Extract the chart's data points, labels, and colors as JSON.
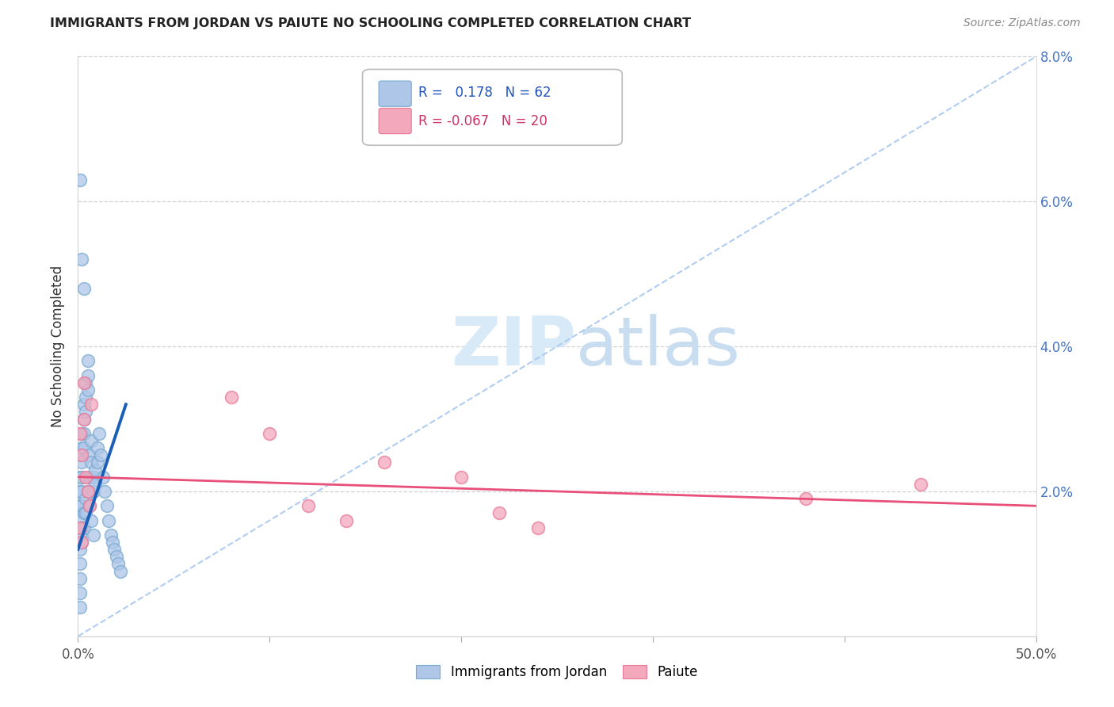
{
  "title": "IMMIGRANTS FROM JORDAN VS PAIUTE NO SCHOOLING COMPLETED CORRELATION CHART",
  "source": "Source: ZipAtlas.com",
  "ylabel": "No Schooling Completed",
  "xlim": [
    0.0,
    0.5
  ],
  "ylim": [
    0.0,
    0.08
  ],
  "xtick_positions": [
    0.0,
    0.1,
    0.2,
    0.3,
    0.4,
    0.5
  ],
  "xtick_labels_show": [
    "0.0%",
    "",
    "",
    "",
    "",
    "50.0%"
  ],
  "ytick_positions": [
    0.0,
    0.02,
    0.04,
    0.06,
    0.08
  ],
  "ytick_labels_right": [
    "",
    "2.0%",
    "4.0%",
    "6.0%",
    "8.0%"
  ],
  "jordan_R": 0.178,
  "jordan_N": 62,
  "paiute_R": -0.067,
  "paiute_N": 20,
  "jordan_color": "#aec6e8",
  "paiute_color": "#f4a8bc",
  "jordan_edge_color": "#7aaad0",
  "paiute_edge_color": "#e87898",
  "jordan_line_color": "#1a5eb8",
  "paiute_line_color": "#e8507a",
  "diag_line_color": "#a8c8f0",
  "watermark_color": "#d8eaf8",
  "legend_box_color": "#cccccc",
  "jordan_x": [
    0.001,
    0.001,
    0.001,
    0.001,
    0.001,
    0.001,
    0.001,
    0.001,
    0.002,
    0.002,
    0.002,
    0.002,
    0.002,
    0.002,
    0.003,
    0.003,
    0.003,
    0.003,
    0.004,
    0.004,
    0.004,
    0.005,
    0.005,
    0.005,
    0.006,
    0.006,
    0.007,
    0.007,
    0.008,
    0.008,
    0.009,
    0.009,
    0.01,
    0.01,
    0.011,
    0.012,
    0.013,
    0.014,
    0.015,
    0.016,
    0.017,
    0.018,
    0.019,
    0.02,
    0.021,
    0.022,
    0.001,
    0.001,
    0.001,
    0.002,
    0.002,
    0.003,
    0.003,
    0.004,
    0.004,
    0.005,
    0.006,
    0.007,
    0.008,
    0.001,
    0.002,
    0.003
  ],
  "jordan_y": [
    0.025,
    0.022,
    0.02,
    0.018,
    0.016,
    0.014,
    0.012,
    0.01,
    0.028,
    0.026,
    0.024,
    0.022,
    0.02,
    0.018,
    0.032,
    0.03,
    0.028,
    0.026,
    0.035,
    0.033,
    0.031,
    0.038,
    0.036,
    0.034,
    0.025,
    0.022,
    0.027,
    0.024,
    0.022,
    0.02,
    0.023,
    0.021,
    0.026,
    0.024,
    0.028,
    0.025,
    0.022,
    0.02,
    0.018,
    0.016,
    0.014,
    0.013,
    0.012,
    0.011,
    0.01,
    0.009,
    0.008,
    0.006,
    0.004,
    0.015,
    0.013,
    0.017,
    0.015,
    0.019,
    0.017,
    0.02,
    0.018,
    0.016,
    0.014,
    0.063,
    0.052,
    0.048
  ],
  "paiute_x": [
    0.001,
    0.002,
    0.003,
    0.004,
    0.005,
    0.006,
    0.007,
    0.001,
    0.002,
    0.003,
    0.08,
    0.1,
    0.12,
    0.14,
    0.16,
    0.2,
    0.22,
    0.24,
    0.38,
    0.44
  ],
  "paiute_y": [
    0.028,
    0.025,
    0.03,
    0.022,
    0.02,
    0.018,
    0.032,
    0.015,
    0.013,
    0.035,
    0.033,
    0.028,
    0.018,
    0.016,
    0.024,
    0.022,
    0.017,
    0.015,
    0.019,
    0.021
  ],
  "jordan_line_x": [
    0.0,
    0.025
  ],
  "jordan_line_y_start": 0.012,
  "jordan_line_y_end": 0.032,
  "paiute_line_x": [
    0.0,
    0.5
  ],
  "paiute_line_y_start": 0.022,
  "paiute_line_y_end": 0.018
}
